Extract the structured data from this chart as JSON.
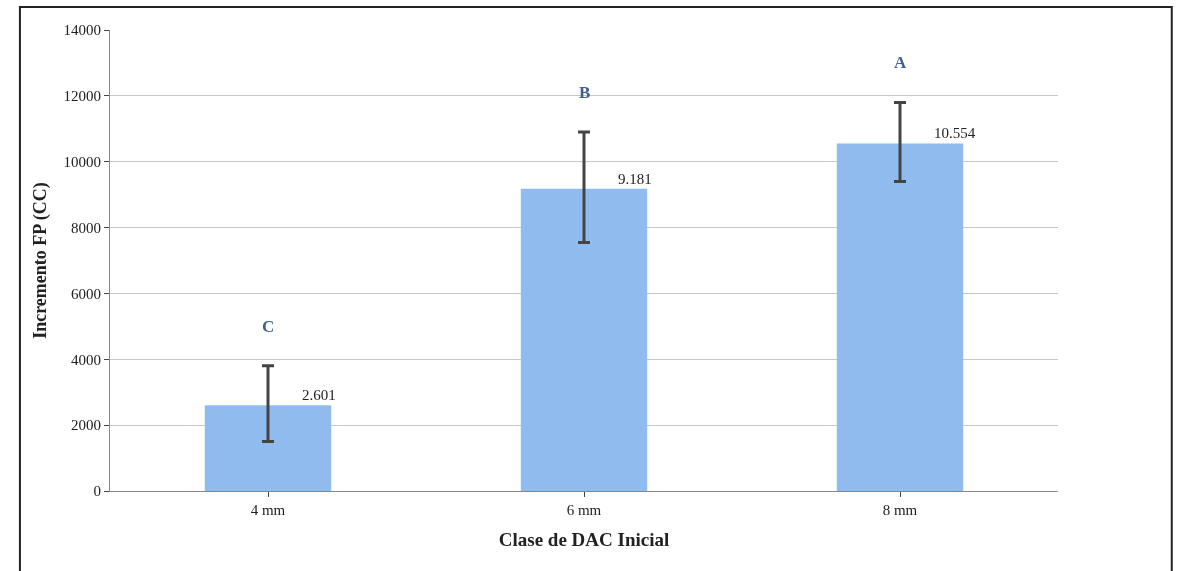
{
  "chart_data": {
    "type": "bar",
    "xlabel": "Clase de DAC Inicial",
    "ylabel": "Incremento FP (CC)",
    "categories": [
      "4 mm",
      "6 mm",
      "8 mm"
    ],
    "values": [
      2601,
      9181,
      10554
    ],
    "value_labels": [
      "2.601",
      "9.181",
      "10.554"
    ],
    "errors": [
      [
        1500,
        3800
      ],
      [
        7550,
        10900
      ],
      [
        9400,
        11800
      ]
    ],
    "color": "#8fbbef",
    "ylim": [
      0,
      14000
    ],
    "yticks": [
      0,
      2000,
      4000,
      6000,
      8000,
      10000,
      12000,
      14000
    ],
    "grid": "y",
    "legend": false,
    "annotations": [
      "C",
      "B",
      "A"
    ]
  }
}
